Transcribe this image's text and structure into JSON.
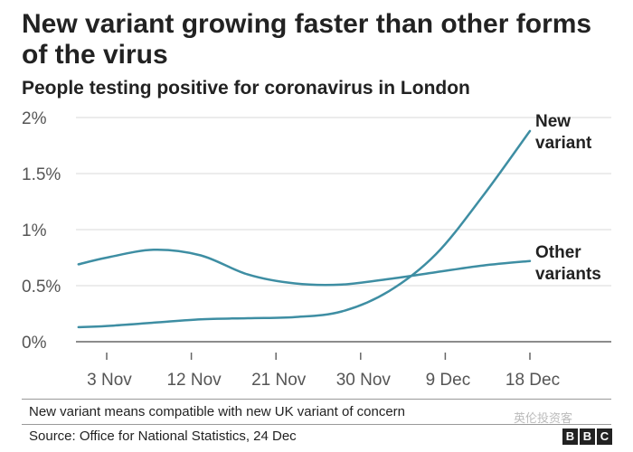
{
  "title": "New variant growing faster than other forms of the virus",
  "subtitle": "People testing positive for coronavirus in London",
  "note": "New variant means compatible with new UK variant of concern",
  "source": "Source: Office for National Statistics, 24 Dec",
  "watermark": "英伦投资客",
  "logo": [
    "B",
    "B",
    "C"
  ],
  "colors": {
    "line": "#3e8ea3",
    "grid": "#d9d9d9",
    "axis": "#666666"
  },
  "chart_data": {
    "type": "line",
    "x_tick_labels": [
      "3 Nov",
      "12 Nov",
      "21 Nov",
      "30 Nov",
      "9 Dec",
      "18 Dec"
    ],
    "x_tick_days": [
      0,
      9,
      18,
      27,
      36,
      45
    ],
    "y_tick_labels": [
      "0%",
      "0.5%",
      "1%",
      "1.5%",
      "2%"
    ],
    "y_ticks": [
      0,
      0.5,
      1,
      1.5,
      2
    ],
    "ylim": [
      0,
      2
    ],
    "grid": true,
    "series": [
      {
        "name": "New variant",
        "label_lines": [
          "New",
          "variant"
        ],
        "x": [
          -3,
          0,
          5,
          10,
          15,
          20,
          25,
          30,
          35,
          40,
          45
        ],
        "y": [
          0.13,
          0.14,
          0.17,
          0.2,
          0.21,
          0.22,
          0.27,
          0.45,
          0.78,
          1.3,
          1.88
        ]
      },
      {
        "name": "Other variants",
        "label_lines": [
          "Other",
          "variants"
        ],
        "x": [
          -3,
          0,
          5,
          10,
          15,
          20,
          25,
          30,
          35,
          40,
          45
        ],
        "y": [
          0.69,
          0.75,
          0.82,
          0.77,
          0.6,
          0.52,
          0.51,
          0.56,
          0.62,
          0.68,
          0.72
        ]
      }
    ]
  }
}
